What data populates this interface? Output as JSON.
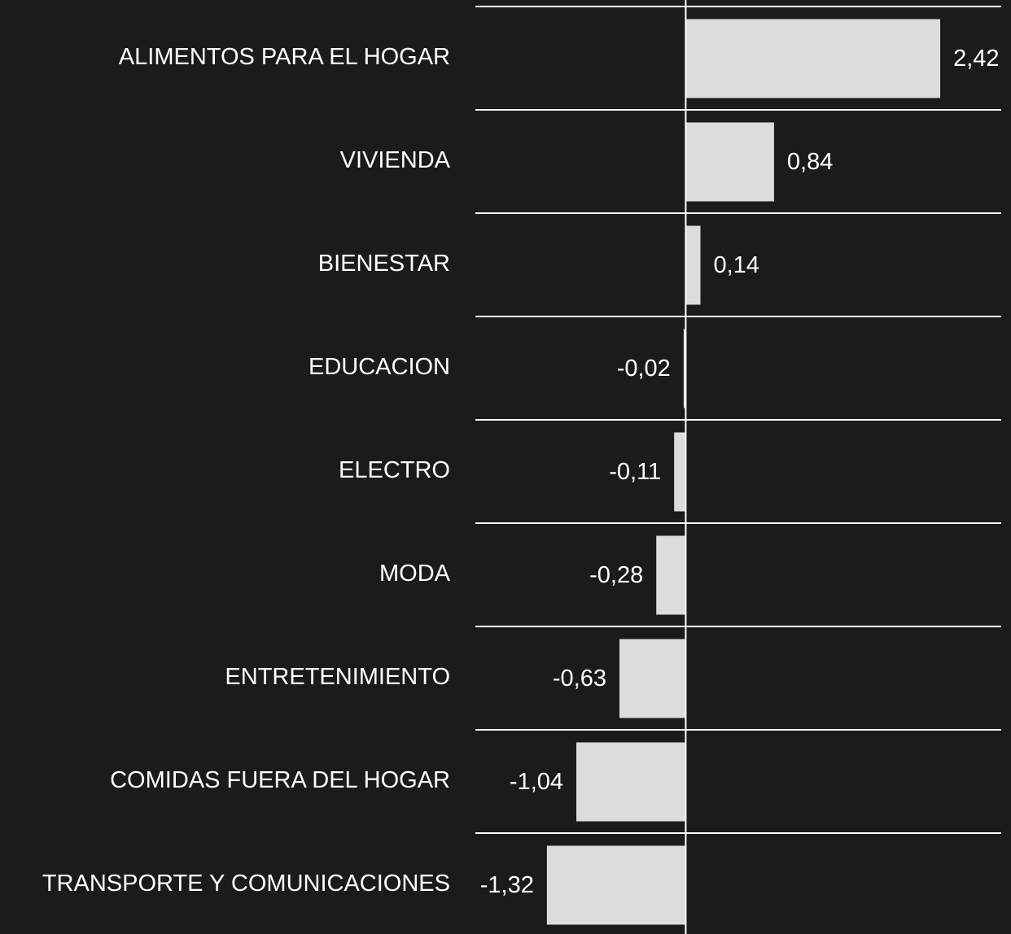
{
  "chart_data": {
    "type": "bar",
    "orientation": "horizontal",
    "categories": [
      "ALIMENTOS PARA EL HOGAR",
      "VIVIENDA",
      "BIENESTAR",
      "EDUCACION",
      "ELECTRO",
      "MODA",
      "ENTRETENIMIENTO",
      "COMIDAS FUERA DEL HOGAR",
      "TRANSPORTE Y COMUNICACIONES"
    ],
    "values": [
      2.42,
      0.84,
      0.14,
      -0.02,
      -0.11,
      -0.28,
      -0.63,
      -1.04,
      -1.32
    ],
    "value_labels": [
      "2,42",
      "0,84",
      "0,14",
      "-0,02",
      "-0,11",
      "-0,28",
      "-0,63",
      "-1,04",
      "-1,32"
    ],
    "color": "#dcdcdc",
    "xlim": [
      -2,
      3
    ]
  }
}
